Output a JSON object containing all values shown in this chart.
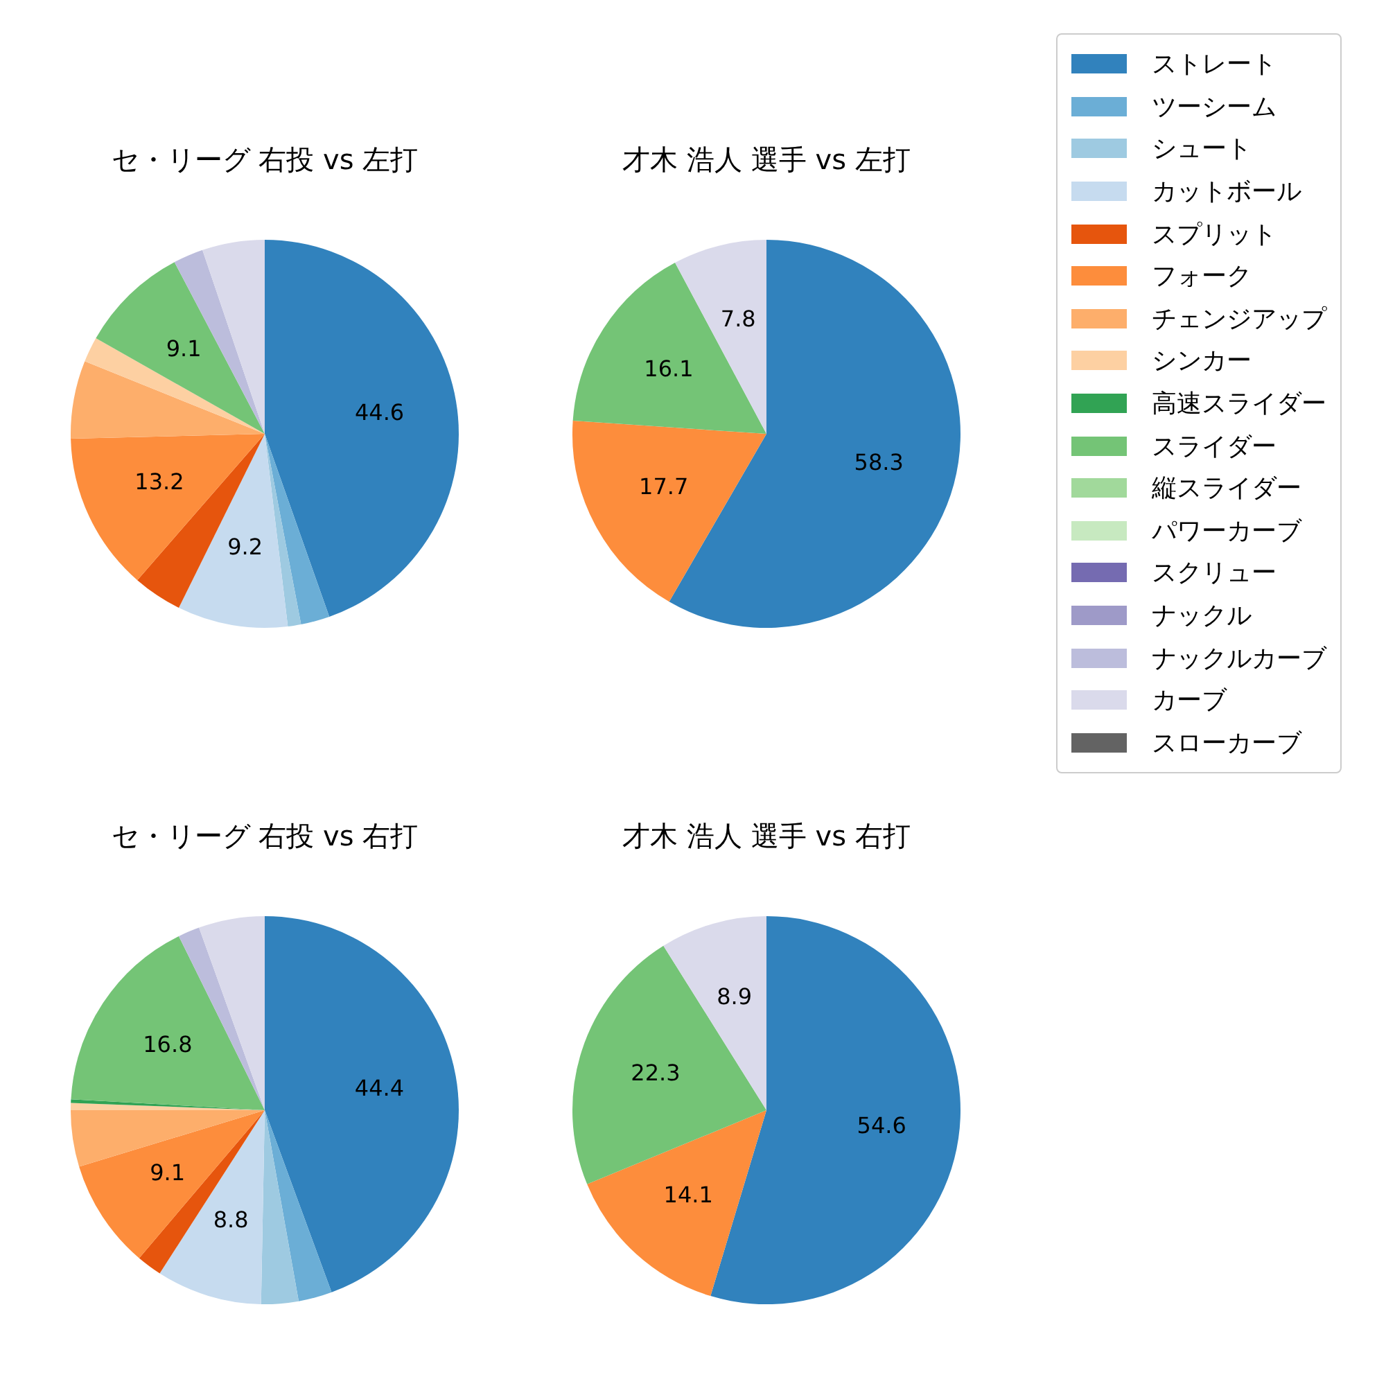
{
  "chart_data": [
    {
      "type": "pie",
      "title": "セ・リーグ 右投 vs 左打",
      "legend": "right",
      "categories": [
        "ストレート",
        "ツーシーム",
        "シュート",
        "カットボール",
        "スプリット",
        "フォーク",
        "チェンジアップ",
        "シンカー",
        "高速スライダー",
        "スライダー",
        "縦スライダー",
        "パワーカーブ",
        "スクリュー",
        "ナックル",
        "ナックルカーブ",
        "カーブ",
        "スローカーブ"
      ],
      "values": [
        44.6,
        2.4,
        1.1,
        9.2,
        4.1,
        13.2,
        6.5,
        2.1,
        0,
        9.1,
        0,
        0,
        0,
        0,
        2.5,
        5.2,
        0
      ],
      "value_labels": [
        "44.6",
        null,
        null,
        "9.2",
        null,
        "13.2",
        null,
        null,
        null,
        "9.1",
        null,
        null,
        null,
        null,
        null,
        null,
        null
      ],
      "colors": [
        "#3182bd",
        "#6baed6",
        "#9ecae1",
        "#c6dbef",
        "#e6550d",
        "#fd8d3c",
        "#fdae6b",
        "#fdd0a2",
        "#31a354",
        "#74c476",
        "#a1d99b",
        "#c7e9c0",
        "#756bb1",
        "#9e9ac8",
        "#bcbddc",
        "#dadaeb",
        "#636363"
      ]
    },
    {
      "type": "pie",
      "title": "才木 浩人 選手 vs 左打",
      "categories": [
        null,
        null,
        null,
        null
      ],
      "values": [
        58.3,
        17.7,
        16.1,
        7.8
      ],
      "value_labels": [
        "58.3",
        "17.7",
        "16.1",
        "7.8"
      ],
      "colors": [
        "#3182bd",
        "#fd8d3c",
        "#74c476",
        "#dadaeb"
      ]
    },
    {
      "type": "pie",
      "title": "セ・リーグ 右投 vs 右打",
      "categories": [
        null,
        null,
        null,
        null,
        null,
        null,
        null,
        null,
        null,
        null,
        null,
        null,
        null,
        null,
        null,
        null,
        null
      ],
      "values": [
        44.4,
        2.8,
        3.1,
        8.8,
        2.1,
        9.1,
        4.7,
        0.6,
        0.3,
        16.8,
        0,
        0,
        0,
        0,
        1.8,
        5.5,
        0
      ],
      "value_labels": [
        "44.4",
        null,
        null,
        "8.8",
        null,
        "9.1",
        null,
        null,
        null,
        "16.8",
        null,
        null,
        null,
        null,
        null,
        null,
        null
      ],
      "colors": [
        "#3182bd",
        "#6baed6",
        "#9ecae1",
        "#c6dbef",
        "#e6550d",
        "#fd8d3c",
        "#fdae6b",
        "#fdd0a2",
        "#31a354",
        "#74c476",
        "#a1d99b",
        "#c7e9c0",
        "#756bb1",
        "#9e9ac8",
        "#bcbddc",
        "#dadaeb",
        "#636363"
      ]
    },
    {
      "type": "pie",
      "title": "才木 浩人 選手 vs 右打",
      "categories": [
        null,
        null,
        null,
        null
      ],
      "values": [
        54.6,
        14.1,
        22.3,
        8.9
      ],
      "value_labels": [
        "54.6",
        "14.1",
        "22.3",
        "8.9"
      ],
      "colors": [
        "#3182bd",
        "#fd8d3c",
        "#74c476",
        "#dadaeb"
      ]
    }
  ]
}
